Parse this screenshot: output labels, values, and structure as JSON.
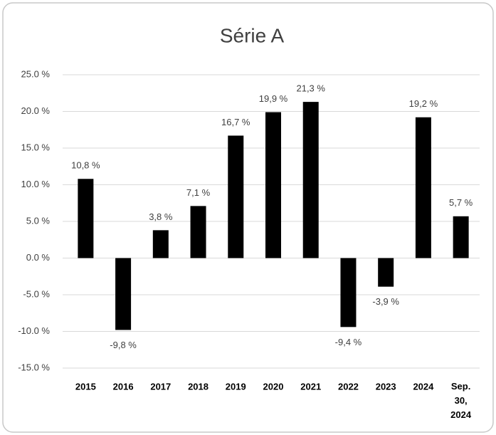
{
  "chart_data": {
    "type": "bar",
    "title": "Série A",
    "categories": [
      "2015",
      "2016",
      "2017",
      "2018",
      "2019",
      "2020",
      "2021",
      "2022",
      "2023",
      "2024",
      "Sep. 30, 2024"
    ],
    "values": [
      10.8,
      -9.8,
      3.8,
      7.1,
      16.7,
      19.9,
      21.3,
      -9.4,
      -3.9,
      19.2,
      5.7
    ],
    "value_labels": [
      "10,8 %",
      "-9,8 %",
      "3,8 %",
      "7,1 %",
      "16,7 %",
      "19,9 %",
      "21,3 %",
      "-9,4 %",
      "-3,9 %",
      "19,2 %",
      "5,7 %"
    ],
    "color": "#000000",
    "ylim": [
      -15,
      25
    ],
    "yticks": [
      {
        "value": -15,
        "label": "-15.0 %"
      },
      {
        "value": -10,
        "label": "-10.0 %"
      },
      {
        "value": -5,
        "label": "-5.0 %"
      },
      {
        "value": 0,
        "label": "0.0 %"
      },
      {
        "value": 5,
        "label": "5.0 %"
      },
      {
        "value": 10,
        "label": "10.0 %"
      },
      {
        "value": 15,
        "label": "15.0 %"
      },
      {
        "value": 20,
        "label": "20.0 %"
      },
      {
        "value": 25,
        "label": "25.0 %"
      }
    ],
    "grid": true
  }
}
